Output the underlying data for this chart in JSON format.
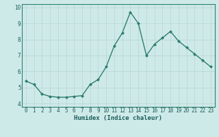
{
  "x": [
    0,
    1,
    2,
    3,
    4,
    5,
    6,
    7,
    8,
    9,
    10,
    11,
    12,
    13,
    14,
    15,
    16,
    17,
    18,
    19,
    20,
    21,
    22,
    23
  ],
  "y": [
    5.4,
    5.2,
    4.6,
    4.45,
    4.4,
    4.4,
    4.45,
    4.5,
    5.2,
    5.5,
    6.3,
    7.6,
    8.4,
    9.7,
    9.0,
    7.0,
    7.7,
    8.1,
    8.5,
    7.9,
    7.5,
    7.1,
    6.7,
    6.3
  ],
  "line_color": "#2e7d6e",
  "marker": "D",
  "marker_size": 2.0,
  "line_width": 1.0,
  "bg_color": "#ceeae8",
  "grid_color_major": "#b8d4d2",
  "grid_color_minor": "#d4e8e6",
  "xlabel": "Humidex (Indice chaleur)",
  "xlim": [
    -0.5,
    23.5
  ],
  "ylim": [
    3.8,
    10.2
  ],
  "yticks": [
    4,
    5,
    6,
    7,
    8,
    9,
    10
  ],
  "xticks": [
    0,
    1,
    2,
    3,
    4,
    5,
    6,
    7,
    8,
    9,
    10,
    11,
    12,
    13,
    14,
    15,
    16,
    17,
    18,
    19,
    20,
    21,
    22,
    23
  ],
  "xlabel_fontsize": 6.5,
  "tick_fontsize": 5.5,
  "text_color": "#1a5c5a"
}
